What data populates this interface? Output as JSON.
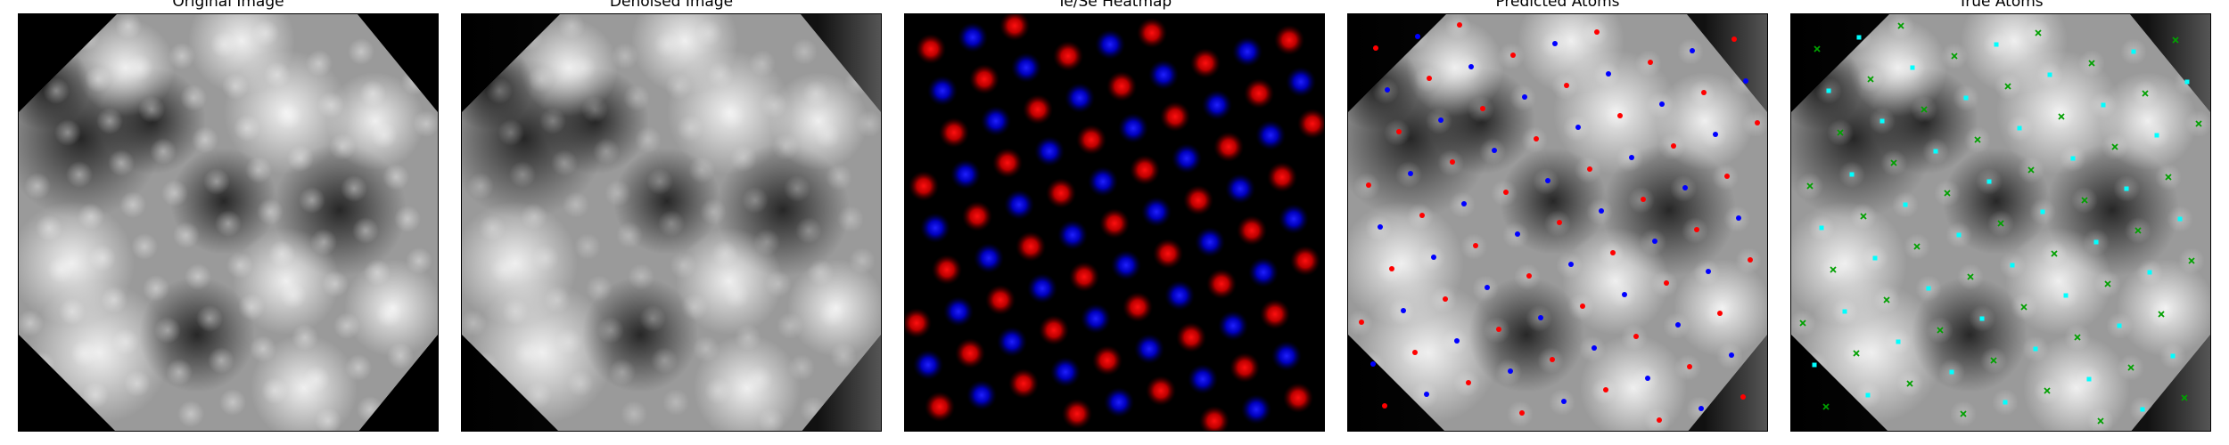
{
  "figure": {
    "panels": [
      {
        "id": "original",
        "title": "Original Image"
      },
      {
        "id": "denoised",
        "title": "Denoised Image"
      },
      {
        "id": "heatmap",
        "title": "Te/Se Heatmap",
        "colors": {
          "te": "#ff0000",
          "se": "#0000ff"
        }
      },
      {
        "id": "predicted",
        "title": "Predicted Atoms",
        "colors": {
          "te": "#ff0000",
          "se": "#0000ff"
        }
      },
      {
        "id": "true",
        "title": "True Atoms",
        "colors": {
          "te": "#00a000",
          "se": "#00ffff"
        }
      }
    ]
  }
}
